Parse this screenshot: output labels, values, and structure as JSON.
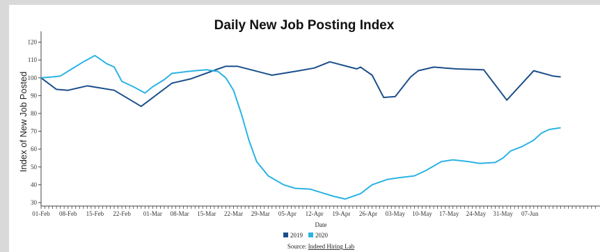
{
  "chart_data": {
    "type": "line",
    "title": "Daily New Job Posting Index",
    "xlabel": "Date",
    "ylabel": "Index of New Job Posted",
    "ylim": [
      25,
      120
    ],
    "yticks": [
      30,
      40,
      50,
      60,
      70,
      80,
      90,
      100,
      110,
      120
    ],
    "x_tick_labels": [
      "01-Feb",
      "08-Feb",
      "15-Feb",
      "22-Feb",
      "01-Mar",
      "08-Mar",
      "15-Mar",
      "22-Mar",
      "29-Mar",
      "05-Apr",
      "12-Apr",
      "19-Apr",
      "26-Apr",
      "03-May",
      "10-May",
      "17-May",
      "24-May",
      "31-May",
      "07-Jun"
    ],
    "legend_position": "bottom-center",
    "source_prefix": "Source: ",
    "source_link": "Indeed Hiring Lab",
    "series": [
      {
        "name": "2019",
        "color": "#1b4f8a",
        "points": [
          {
            "x": "01-Feb",
            "y": 100
          },
          {
            "x": "05-Feb",
            "y": 93.5
          },
          {
            "x": "08-Feb",
            "y": 93
          },
          {
            "x": "13-Feb",
            "y": 95.5
          },
          {
            "x": "20-Feb",
            "y": 93
          },
          {
            "x": "27-Feb",
            "y": 84
          },
          {
            "x": "06-Mar",
            "y": 97
          },
          {
            "x": "11-Mar",
            "y": 99.5
          },
          {
            "x": "18-Mar",
            "y": 105
          },
          {
            "x": "20-Mar",
            "y": 106.5
          },
          {
            "x": "23-Mar",
            "y": 106.5
          },
          {
            "x": "01-Apr",
            "y": 101.5
          },
          {
            "x": "08-Apr",
            "y": 104
          },
          {
            "x": "12-Apr",
            "y": 105.5
          },
          {
            "x": "16-Apr",
            "y": 109
          },
          {
            "x": "23-Apr",
            "y": 105
          },
          {
            "x": "24-Apr",
            "y": 106
          },
          {
            "x": "27-Apr",
            "y": 101.5
          },
          {
            "x": "30-Apr",
            "y": 89
          },
          {
            "x": "03-May",
            "y": 89.5
          },
          {
            "x": "07-May",
            "y": 100.5
          },
          {
            "x": "09-May",
            "y": 104
          },
          {
            "x": "13-May",
            "y": 106
          },
          {
            "x": "16-May",
            "y": 105.5
          },
          {
            "x": "19-May",
            "y": 105
          },
          {
            "x": "26-May",
            "y": 104.5
          },
          {
            "x": "01-Jun",
            "y": 87.5
          },
          {
            "x": "08-Jun",
            "y": 104
          },
          {
            "x": "13-Jun",
            "y": 101
          },
          {
            "x": "15-Jun",
            "y": 100.5
          }
        ]
      },
      {
        "name": "2020",
        "color": "#2bb3e3",
        "points": [
          {
            "x": "01-Feb",
            "y": 100
          },
          {
            "x": "04-Feb",
            "y": 100.5
          },
          {
            "x": "06-Feb",
            "y": 101
          },
          {
            "x": "09-Feb",
            "y": 105
          },
          {
            "x": "12-Feb",
            "y": 109
          },
          {
            "x": "15-Feb",
            "y": 112.5
          },
          {
            "x": "16-Feb",
            "y": 111
          },
          {
            "x": "18-Feb",
            "y": 108
          },
          {
            "x": "20-Feb",
            "y": 106
          },
          {
            "x": "22-Feb",
            "y": 98
          },
          {
            "x": "25-Feb",
            "y": 95
          },
          {
            "x": "28-Feb",
            "y": 91.5
          },
          {
            "x": "01-Mar",
            "y": 95
          },
          {
            "x": "04-Mar",
            "y": 99
          },
          {
            "x": "06-Mar",
            "y": 102.5
          },
          {
            "x": "10-Mar",
            "y": 103.5
          },
          {
            "x": "12-Mar",
            "y": 104
          },
          {
            "x": "15-Mar",
            "y": 104.5
          },
          {
            "x": "18-Mar",
            "y": 103.5
          },
          {
            "x": "20-Mar",
            "y": 100
          },
          {
            "x": "22-Mar",
            "y": 93
          },
          {
            "x": "24-Mar",
            "y": 80
          },
          {
            "x": "26-Mar",
            "y": 65
          },
          {
            "x": "28-Mar",
            "y": 53
          },
          {
            "x": "31-Mar",
            "y": 45
          },
          {
            "x": "04-Apr",
            "y": 40
          },
          {
            "x": "07-Apr",
            "y": 38
          },
          {
            "x": "11-Apr",
            "y": 37.5
          },
          {
            "x": "14-Apr",
            "y": 35.5
          },
          {
            "x": "17-Apr",
            "y": 33.5
          },
          {
            "x": "20-Apr",
            "y": 32
          },
          {
            "x": "24-Apr",
            "y": 35
          },
          {
            "x": "27-Apr",
            "y": 40
          },
          {
            "x": "01-May",
            "y": 43
          },
          {
            "x": "04-May",
            "y": 44
          },
          {
            "x": "08-May",
            "y": 45
          },
          {
            "x": "11-May",
            "y": 48
          },
          {
            "x": "15-May",
            "y": 53
          },
          {
            "x": "18-May",
            "y": 54
          },
          {
            "x": "22-May",
            "y": 53
          },
          {
            "x": "25-May",
            "y": 52
          },
          {
            "x": "29-May",
            "y": 52.5
          },
          {
            "x": "31-May",
            "y": 55
          },
          {
            "x": "02-Jun",
            "y": 59
          },
          {
            "x": "05-Jun",
            "y": 61.5
          },
          {
            "x": "08-Jun",
            "y": 65
          },
          {
            "x": "10-Jun",
            "y": 69
          },
          {
            "x": "12-Jun",
            "y": 71
          },
          {
            "x": "15-Jun",
            "y": 72
          }
        ]
      }
    ]
  }
}
